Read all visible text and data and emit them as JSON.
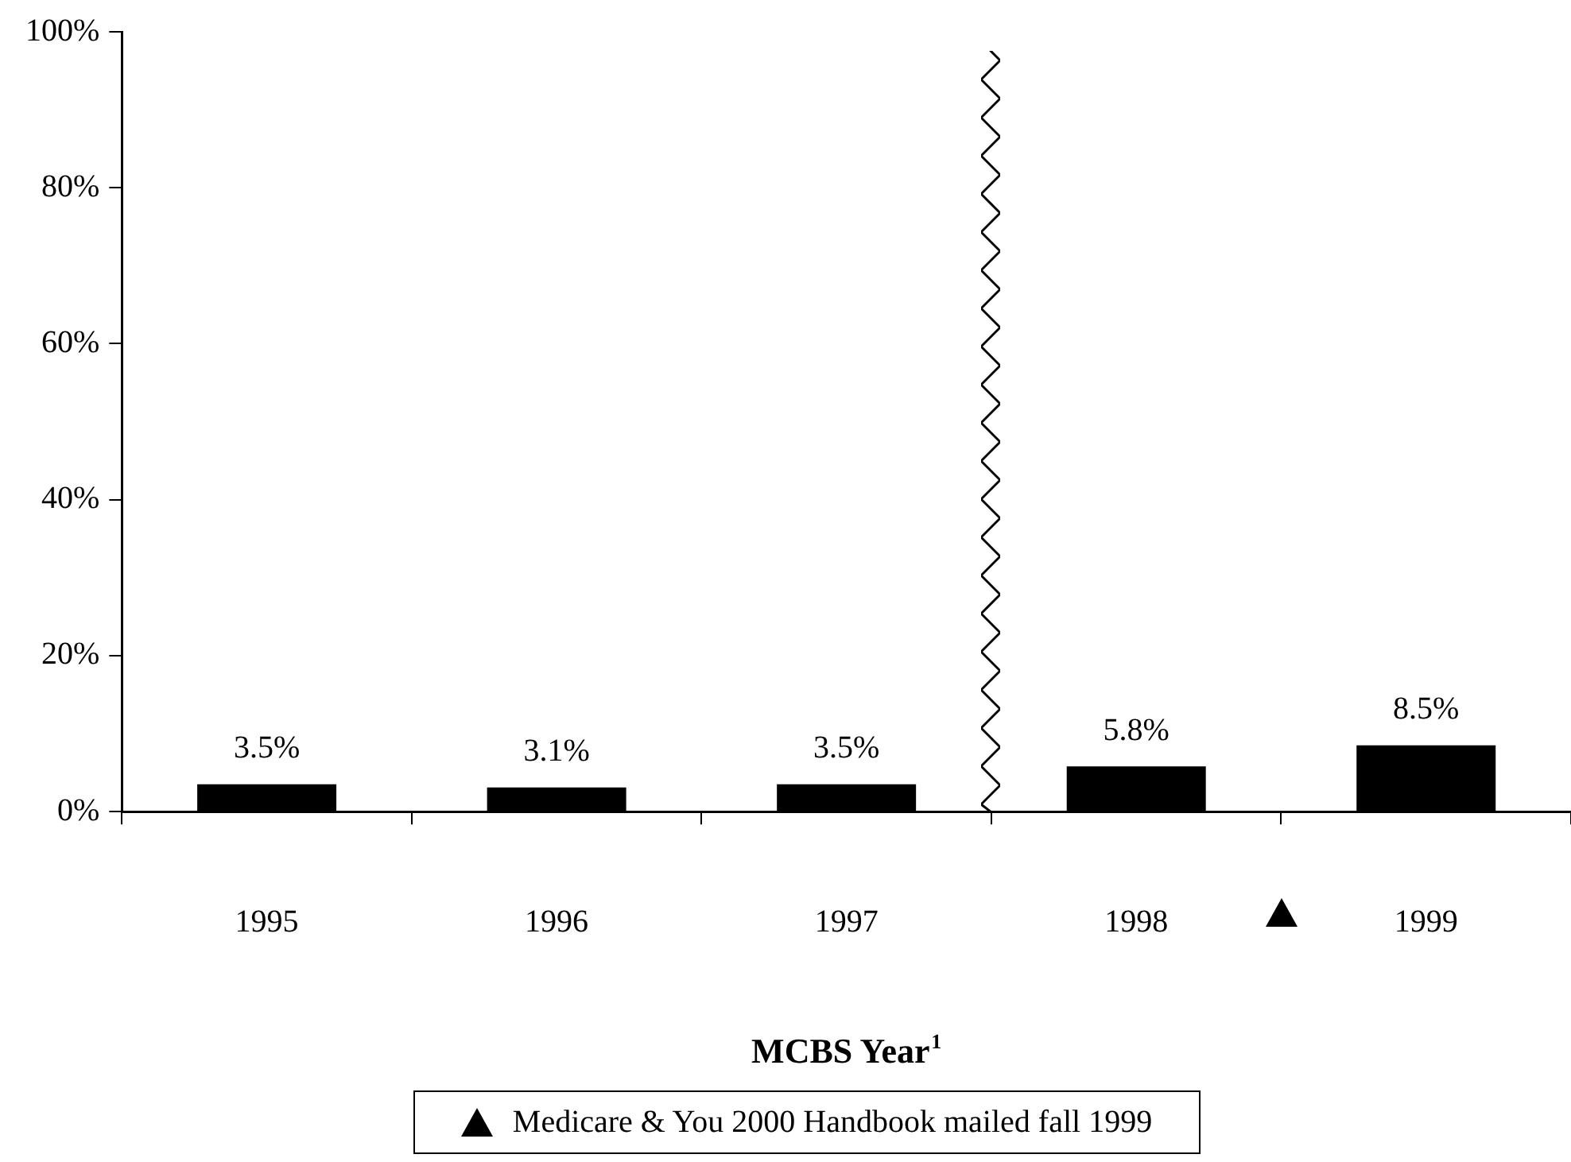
{
  "chart_data": {
    "type": "bar",
    "xlabel": "MCBS Year$^{1}$",
    "categories": [
      "1995",
      "1996",
      "1997",
      "1998",
      "1999"
    ],
    "values": [
      3.5,
      3.1,
      3.5,
      5.8,
      8.5
    ],
    "value_labels": [
      "3.5%",
      "3.1%",
      "3.5%",
      "5.8%",
      "8.5%"
    ],
    "color": "#000000",
    "ylim": [
      0,
      100
    ],
    "yticks": [
      {
        "value": 0,
        "label": "0%"
      },
      {
        "value": 20,
        "label": "20%"
      },
      {
        "value": 40,
        "label": "40%"
      },
      {
        "value": 60,
        "label": "60%"
      },
      {
        "value": 80,
        "label": "80%"
      },
      {
        "value": 100,
        "label": "100%"
      }
    ],
    "grid": false,
    "legend": false,
    "annotations": [
      "Medicare & You 2000 Handbook mailed fall 1999"
    ]
  }
}
